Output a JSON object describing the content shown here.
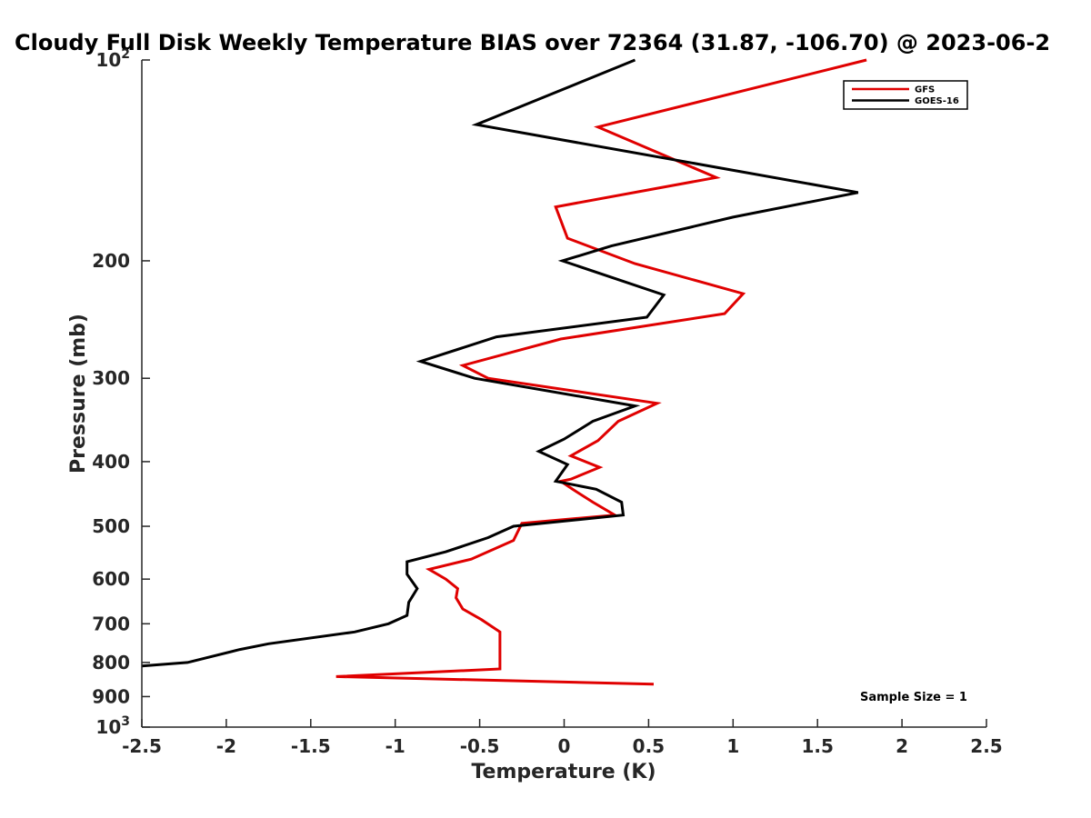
{
  "chart_data": {
    "type": "line",
    "title": "Cloudy Full Disk Weekly Temperature BIAS over 72364 (31.87, -106.70) @ 2023-06-2",
    "xlabel": "Temperature (K)",
    "ylabel": "Pressure (mb)",
    "xlim": [
      -2.5,
      2.5
    ],
    "ylim": [
      100,
      1000
    ],
    "yscale": "log",
    "y_reversed": true,
    "grid": false,
    "legend_position": "top-right",
    "x_ticks": [
      "-2.5",
      "-2",
      "-1.5",
      "-1",
      "-0.5",
      "0",
      "0.5",
      "1",
      "1.5",
      "2",
      "2.5"
    ],
    "x_tick_values": [
      -2.5,
      -2,
      -1.5,
      -1,
      -0.5,
      0,
      0.5,
      1,
      1.5,
      2,
      2.5
    ],
    "y_ticks": [
      {
        "value": 100,
        "base": "10",
        "exp": "2"
      },
      {
        "value": 200,
        "label": "200"
      },
      {
        "value": 300,
        "label": "300"
      },
      {
        "value": 400,
        "label": "400"
      },
      {
        "value": 500,
        "label": "500"
      },
      {
        "value": 600,
        "label": "600"
      },
      {
        "value": 700,
        "label": "700"
      },
      {
        "value": 800,
        "label": "800"
      },
      {
        "value": 900,
        "label": "900"
      },
      {
        "value": 1000,
        "base": "10",
        "exp": "3"
      }
    ],
    "annotation": "Sample Size = 1",
    "series": [
      {
        "name": "GFS",
        "color": "#e00000",
        "x": [
          1.79,
          0.2,
          0.9,
          -0.05,
          0.02,
          0.42,
          1.06,
          0.95,
          -0.02,
          -0.6,
          -0.45,
          0.55,
          0.32,
          0.2,
          0.04,
          0.21,
          0.04,
          -0.02,
          0.05,
          0.17,
          0.3,
          -0.25,
          -0.3,
          -0.55,
          -0.8,
          -0.7,
          -0.63,
          -0.64,
          -0.6,
          -0.49,
          -0.38,
          -0.38,
          -0.38,
          -0.38,
          -0.38,
          -0.38,
          -1.35,
          0.53
        ],
        "y": [
          100,
          126,
          150,
          166,
          185,
          202,
          224,
          240,
          262,
          287,
          300,
          327,
          348,
          372,
          392,
          408,
          425,
          428,
          440,
          460,
          481,
          495,
          525,
          560,
          580,
          600,
          620,
          640,
          665,
          690,
          720,
          745,
          770,
          790,
          815,
          818,
          840,
          862
        ]
      },
      {
        "name": "GOES-16",
        "color": "#000000",
        "x": [
          0.42,
          -0.52,
          1.74,
          1.0,
          0.28,
          -0.01,
          0.59,
          0.49,
          -0.4,
          -0.85,
          -0.53,
          0.42,
          0.17,
          0.0,
          -0.15,
          0.02,
          -0.05,
          0.19,
          0.34,
          0.35,
          -0.3,
          -0.45,
          -0.7,
          -0.93,
          -0.93,
          -0.87,
          -0.92,
          -0.93,
          -1.04,
          -1.24,
          -1.75,
          -1.92,
          -2.23,
          -2.5
        ],
        "y": [
          100,
          125,
          158,
          172,
          190,
          200,
          225,
          243,
          260,
          283,
          300,
          330,
          348,
          370,
          386,
          404,
          428,
          440,
          460,
          481,
          500,
          520,
          546,
          565,
          590,
          620,
          650,
          680,
          700,
          720,
          750,
          765,
          800,
          810
        ]
      }
    ]
  }
}
